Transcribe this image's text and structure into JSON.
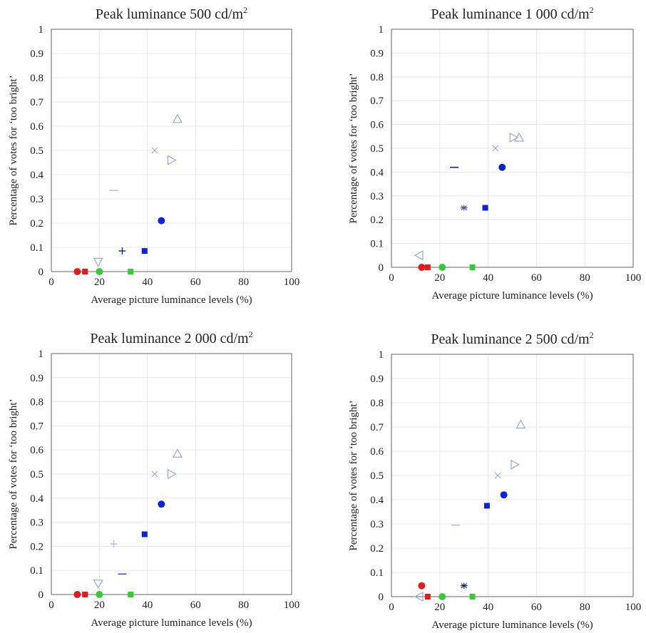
{
  "chart_data": [
    {
      "type": "scatter",
      "title": "Peak luminance 500 cd/m",
      "title_sup": "2",
      "xlabel": "Average picture luminance levels (%)",
      "ylabel": "Percentage of votes for ‘too bright’",
      "xlim": [
        0,
        100
      ],
      "ylim": [
        0,
        1
      ],
      "xticks": [
        "0",
        "20",
        "40",
        "60",
        "80",
        "100"
      ],
      "yticks": [
        "0",
        "0.1",
        "0.2",
        "0.3",
        "0.4",
        "0.5",
        "0.6",
        "0.7",
        "0.8",
        "0.9",
        "1"
      ],
      "grid": true,
      "points": [
        {
          "x": 10.8,
          "y": 0.0,
          "marker": "circle",
          "color": "#e41a1c"
        },
        {
          "x": 14.0,
          "y": 0.0,
          "marker": "square",
          "color": "#e41a1c"
        },
        {
          "x": 20.0,
          "y": 0.0,
          "marker": "circle",
          "color": "#33cc33"
        },
        {
          "x": 33.0,
          "y": 0.0,
          "marker": "square",
          "color": "#33cc33"
        },
        {
          "x": 29.5,
          "y": 0.085,
          "marker": "plus",
          "color": "#1a237e"
        },
        {
          "x": 38.8,
          "y": 0.085,
          "marker": "square",
          "color": "#0a22d8"
        },
        {
          "x": 45.8,
          "y": 0.21,
          "marker": "circle",
          "color": "#0a22d8"
        },
        {
          "x": 19.5,
          "y": 0.04,
          "marker": "triangle-down",
          "color": "#9ea6cf"
        },
        {
          "x": 26.0,
          "y": 0.335,
          "marker": "dash",
          "color": "#b9bedc"
        },
        {
          "x": 43.0,
          "y": 0.5,
          "marker": "cross",
          "color": "#9ea6cf"
        },
        {
          "x": 50.0,
          "y": 0.46,
          "marker": "triangle-right",
          "color": "#9ea6cf"
        },
        {
          "x": 52.5,
          "y": 0.63,
          "marker": "triangle-up",
          "color": "#9ea6cf"
        }
      ]
    },
    {
      "type": "scatter",
      "title": "Peak luminance 1 000 cd/m",
      "title_sup": "2",
      "xlabel": "Average picture luminance levels (%)",
      "ylabel": "Percentage of votes for ‘too bright’",
      "xlim": [
        0,
        100
      ],
      "ylim": [
        0,
        1
      ],
      "xticks": [
        "0",
        "20",
        "40",
        "60",
        "80",
        "100"
      ],
      "yticks": [
        "0",
        "0.1",
        "0.2",
        "0.3",
        "0.4",
        "0.5",
        "0.6",
        "0.7",
        "0.8",
        "0.9",
        "1"
      ],
      "grid": true,
      "points": [
        {
          "x": 11.5,
          "y": 0.05,
          "marker": "triangle-left",
          "color": "#9ea6cf"
        },
        {
          "x": 12.5,
          "y": 0.0,
          "marker": "circle",
          "color": "#e41a1c"
        },
        {
          "x": 15.0,
          "y": 0.0,
          "marker": "square",
          "color": "#e41a1c"
        },
        {
          "x": 21.0,
          "y": 0.0,
          "marker": "circle",
          "color": "#33cc33"
        },
        {
          "x": 33.5,
          "y": 0.0,
          "marker": "square",
          "color": "#33cc33"
        },
        {
          "x": 26.0,
          "y": 0.42,
          "marker": "dash",
          "color": "#1a237e"
        },
        {
          "x": 30.0,
          "y": 0.25,
          "marker": "asterisk",
          "color": "#4a55a0"
        },
        {
          "x": 38.8,
          "y": 0.25,
          "marker": "square",
          "color": "#0a22d8"
        },
        {
          "x": 45.8,
          "y": 0.42,
          "marker": "circle",
          "color": "#0a22d8"
        },
        {
          "x": 43.0,
          "y": 0.5,
          "marker": "cross",
          "color": "#9ea6cf"
        },
        {
          "x": 50.5,
          "y": 0.545,
          "marker": "triangle-right",
          "color": "#9ea6cf"
        },
        {
          "x": 52.8,
          "y": 0.545,
          "marker": "triangle-up",
          "color": "#9ea6cf"
        }
      ]
    },
    {
      "type": "scatter",
      "title": "Peak luminance 2 000 cd/m",
      "title_sup": "2",
      "xlabel": "Average picture luminance levels (%)",
      "ylabel": "Percentage of votes for ‘too bright’",
      "xlim": [
        0,
        100
      ],
      "ylim": [
        0,
        1
      ],
      "xticks": [
        "0",
        "20",
        "40",
        "60",
        "80",
        "100"
      ],
      "yticks": [
        "0",
        "0.1",
        "0.2",
        "0.3",
        "0.4",
        "0.5",
        "0.6",
        "0.7",
        "0.8",
        "0.9",
        "1"
      ],
      "grid": true,
      "points": [
        {
          "x": 10.8,
          "y": 0.0,
          "marker": "circle",
          "color": "#e41a1c"
        },
        {
          "x": 14.0,
          "y": 0.0,
          "marker": "square",
          "color": "#e41a1c"
        },
        {
          "x": 20.0,
          "y": 0.0,
          "marker": "circle",
          "color": "#33cc33"
        },
        {
          "x": 33.0,
          "y": 0.0,
          "marker": "square",
          "color": "#33cc33"
        },
        {
          "x": 19.5,
          "y": 0.045,
          "marker": "triangle-down",
          "color": "#9ea6cf"
        },
        {
          "x": 29.5,
          "y": 0.085,
          "marker": "dash",
          "color": "#4a55a0"
        },
        {
          "x": 26.0,
          "y": 0.21,
          "marker": "plus",
          "color": "#b9bedc"
        },
        {
          "x": 38.8,
          "y": 0.25,
          "marker": "square",
          "color": "#0a22d8"
        },
        {
          "x": 45.8,
          "y": 0.375,
          "marker": "circle",
          "color": "#0a22d8"
        },
        {
          "x": 43.0,
          "y": 0.5,
          "marker": "cross",
          "color": "#9ea6cf"
        },
        {
          "x": 50.0,
          "y": 0.5,
          "marker": "triangle-right",
          "color": "#9ea6cf"
        },
        {
          "x": 52.5,
          "y": 0.585,
          "marker": "triangle-up",
          "color": "#9ea6cf"
        }
      ]
    },
    {
      "type": "scatter",
      "title": "Peak luminance 2 500 cd/m",
      "title_sup": "2",
      "xlabel": "Average picture luminance levels (%)",
      "ylabel": "Percentage of votes for ‘too bright’",
      "xlim": [
        0,
        100
      ],
      "ylim": [
        0,
        1
      ],
      "xticks": [
        "0",
        "20",
        "40",
        "60",
        "80",
        "100"
      ],
      "yticks": [
        "0",
        "0.1",
        "0.2",
        "0.3",
        "0.4",
        "0.5",
        "0.6",
        "0.7",
        "0.8",
        "0.9",
        "1"
      ],
      "grid": true,
      "points": [
        {
          "x": 11.5,
          "y": 0.0,
          "marker": "triangle-left",
          "color": "#9ea6cf"
        },
        {
          "x": 12.5,
          "y": 0.045,
          "marker": "circle",
          "color": "#e41a1c"
        },
        {
          "x": 15.0,
          "y": 0.0,
          "marker": "square",
          "color": "#e41a1c"
        },
        {
          "x": 21.0,
          "y": 0.0,
          "marker": "circle",
          "color": "#33cc33"
        },
        {
          "x": 33.5,
          "y": 0.0,
          "marker": "square",
          "color": "#33cc33"
        },
        {
          "x": 30.0,
          "y": 0.045,
          "marker": "asterisk",
          "color": "#1a237e"
        },
        {
          "x": 26.5,
          "y": 0.295,
          "marker": "dash",
          "color": "#b9bedc"
        },
        {
          "x": 39.5,
          "y": 0.375,
          "marker": "square",
          "color": "#0a22d8"
        },
        {
          "x": 46.5,
          "y": 0.42,
          "marker": "circle",
          "color": "#0a22d8"
        },
        {
          "x": 44.0,
          "y": 0.5,
          "marker": "cross",
          "color": "#9ea6cf"
        },
        {
          "x": 51.0,
          "y": 0.545,
          "marker": "triangle-right",
          "color": "#9ea6cf"
        },
        {
          "x": 53.5,
          "y": 0.71,
          "marker": "triangle-up",
          "color": "#9ea6cf"
        }
      ]
    }
  ]
}
